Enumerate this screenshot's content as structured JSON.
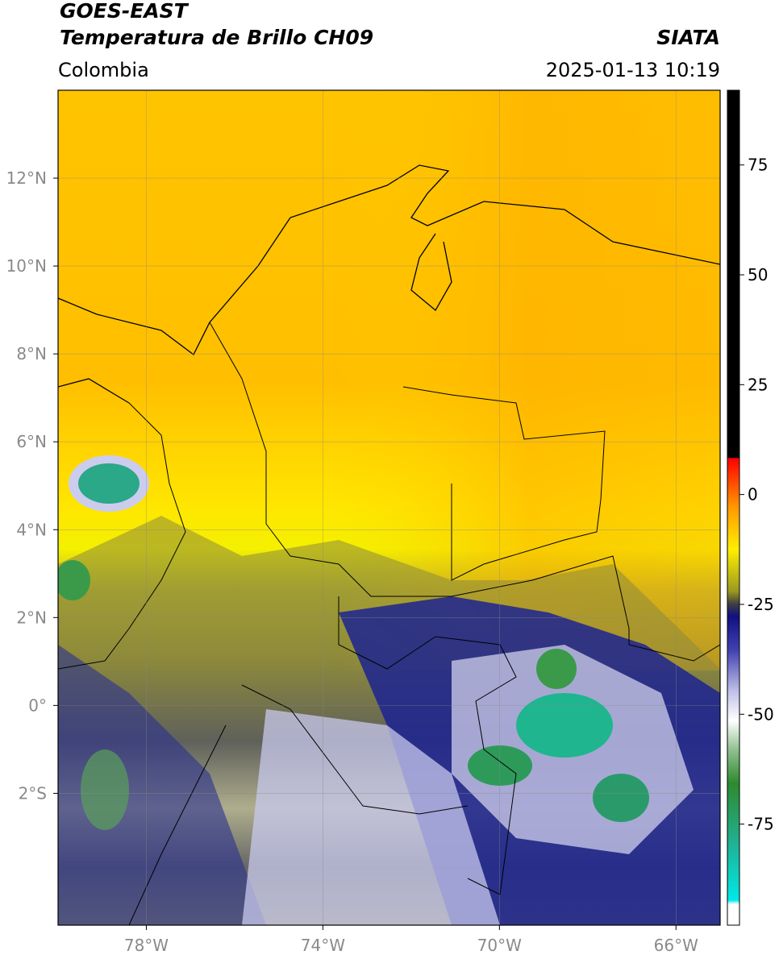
{
  "header": {
    "title": "GOES-EAST",
    "subtitle": "Temperatura de Brillo CH09",
    "source": "SIATA",
    "region": "Colombia",
    "timestamp": "2025-01-13 10:19"
  },
  "map": {
    "xlim": [
      -80,
      -65
    ],
    "ylim": [
      -5,
      14
    ],
    "xticks": [
      {
        "value": -78,
        "label": "78°W"
      },
      {
        "value": -74,
        "label": "74°W"
      },
      {
        "value": -70,
        "label": "70°W"
      },
      {
        "value": -66,
        "label": "66°W"
      }
    ],
    "yticks": [
      {
        "value": -2,
        "label": "2°S"
      },
      {
        "value": 0,
        "label": "0°"
      },
      {
        "value": 2,
        "label": "2°N"
      },
      {
        "value": 4,
        "label": "4°N"
      },
      {
        "value": 6,
        "label": "6°N"
      },
      {
        "value": 8,
        "label": "8°N"
      },
      {
        "value": 10,
        "label": "10°N"
      },
      {
        "value": 12,
        "label": "12°N"
      }
    ],
    "grid": true
  },
  "colorbar": {
    "lim": [
      -98,
      92
    ],
    "ticks": [
      -75,
      -50,
      -25,
      0,
      25,
      50,
      75
    ]
  }
}
